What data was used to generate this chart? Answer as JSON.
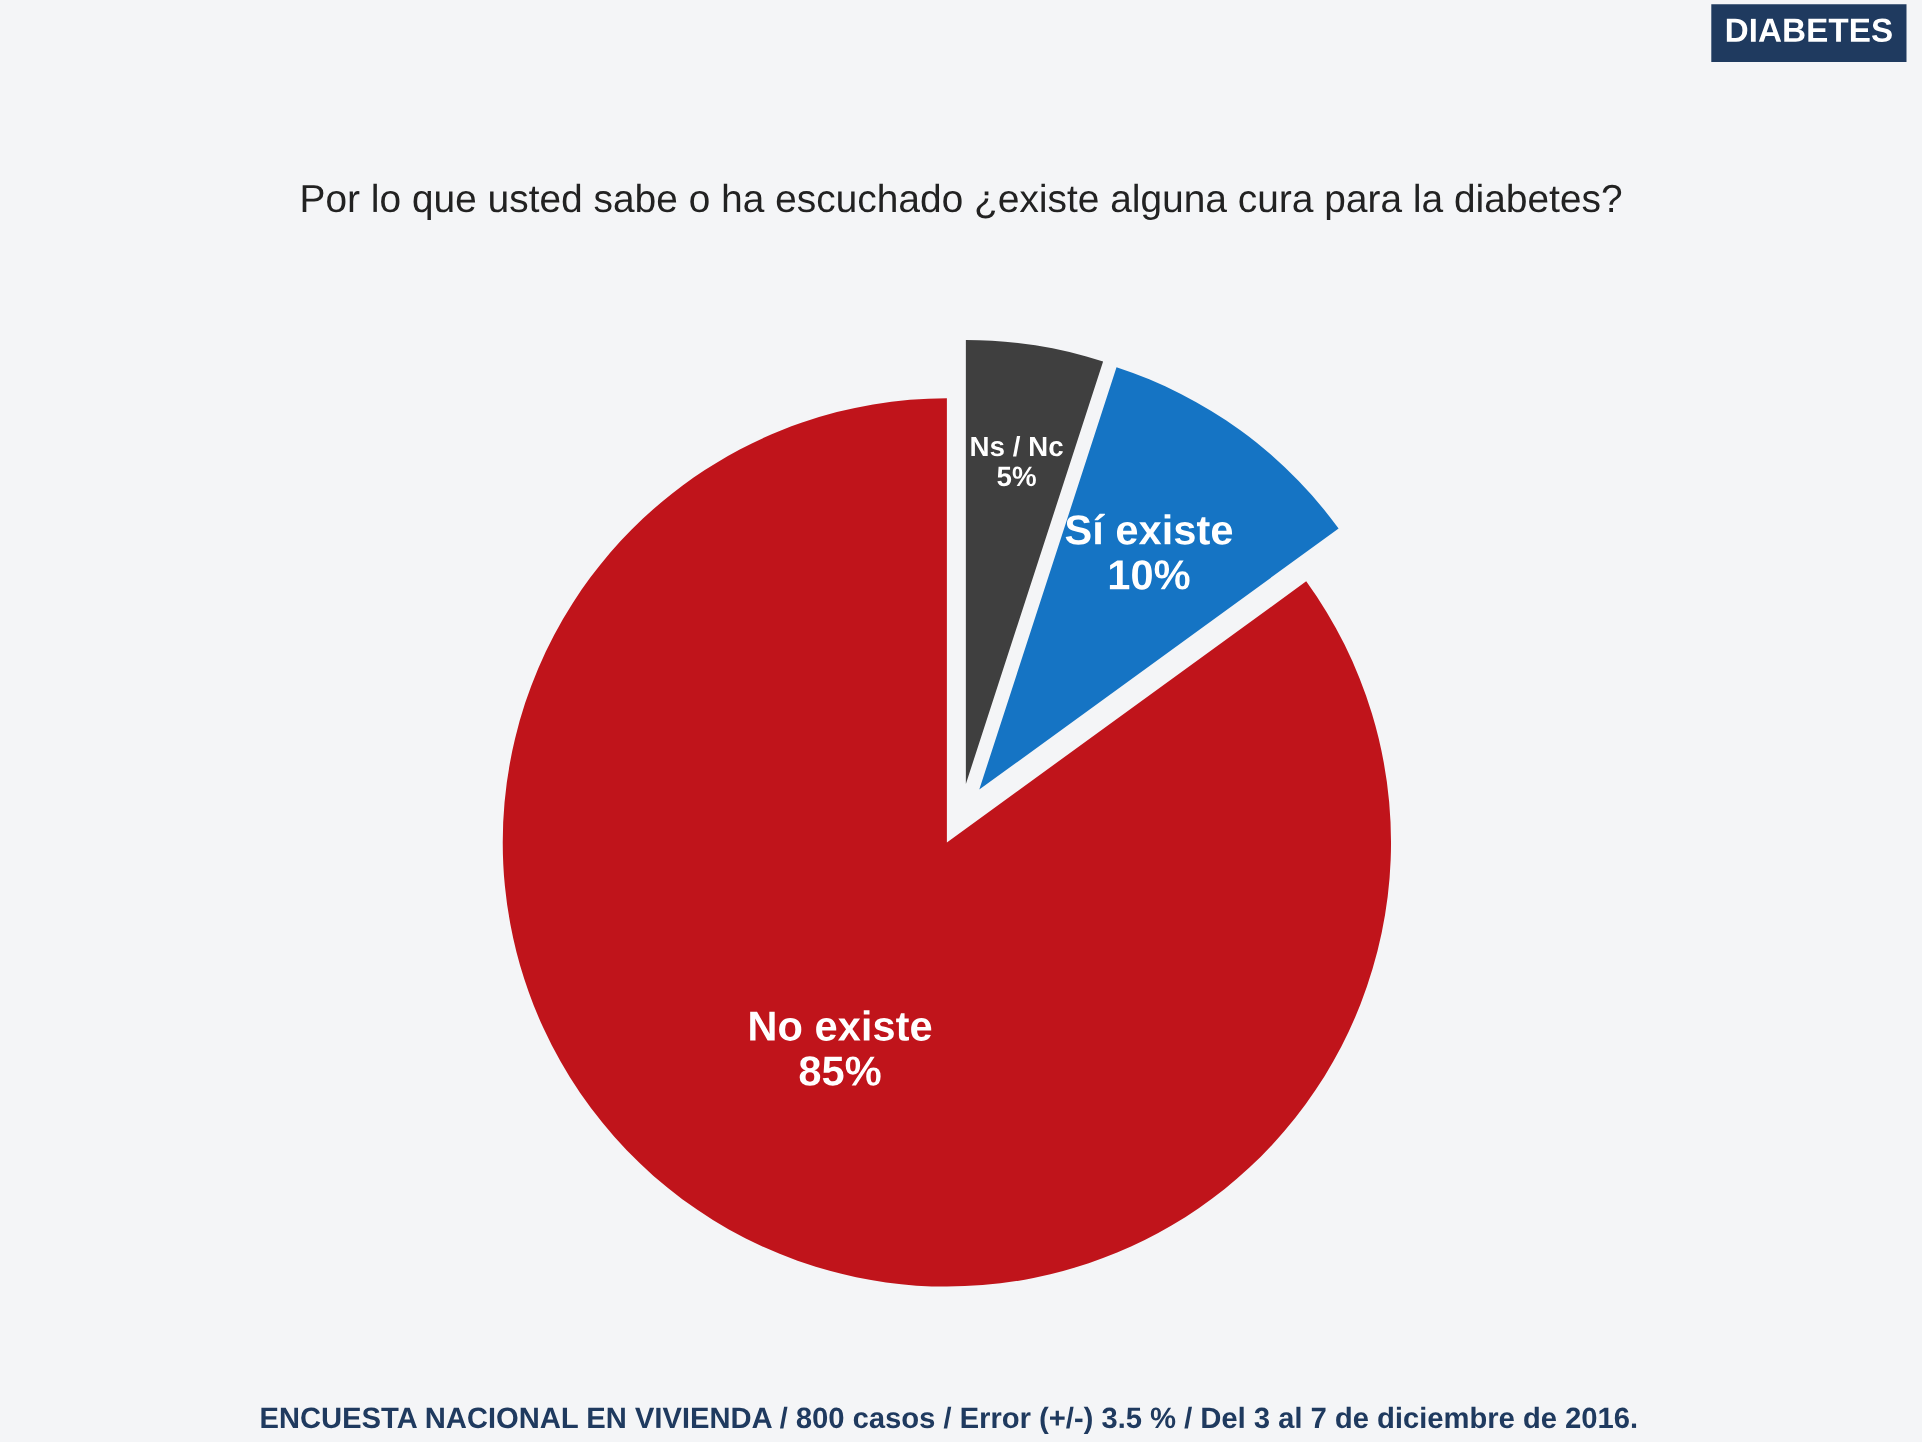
{
  "chart_data": {
    "type": "pie",
    "title": "Por lo que usted sabe o ha escuchado ¿existe alguna cura para la diabetes?",
    "categories": [
      "Ns / Nc",
      "Sí existe",
      "No existe"
    ],
    "values": [
      5,
      10,
      85
    ],
    "colors": [
      "#3f3f3f",
      "#1574c4",
      "#c0141b"
    ],
    "value_labels": [
      "5%",
      "10%",
      "85%"
    ],
    "annotations": [
      "DIABETES",
      "ENCUESTA NACIONAL EN VIVIENDA / 800 casos / Error (+/-) 3.5 % / Del 3 al 7 de diciembre de 2016."
    ]
  }
}
